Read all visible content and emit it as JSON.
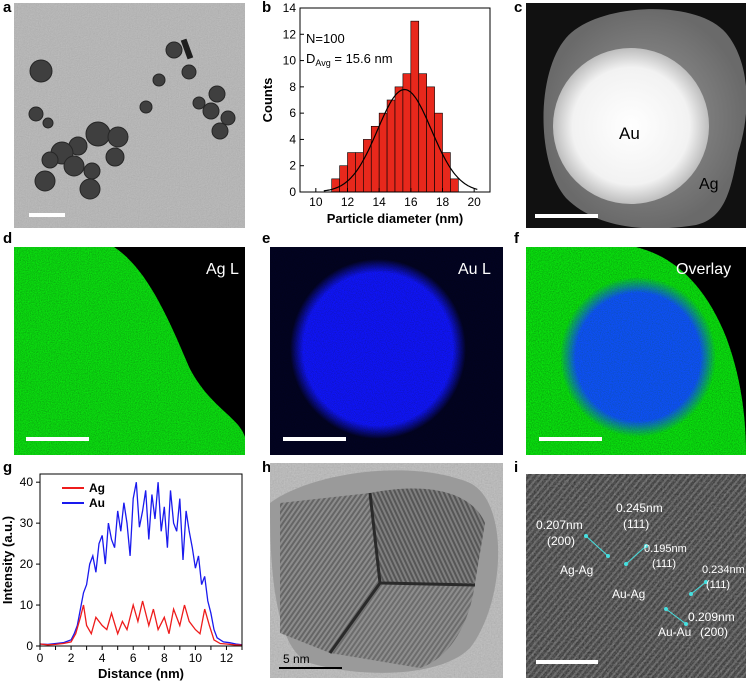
{
  "panel_labels": [
    "a",
    "b",
    "c",
    "d",
    "e",
    "f",
    "g",
    "h",
    "i"
  ],
  "panel_c": {
    "core_label": "Au",
    "shell_label": "Ag"
  },
  "panel_d": {
    "label": "Ag L"
  },
  "panel_e": {
    "label": "Au L"
  },
  "panel_f": {
    "label": "Overlay"
  },
  "panel_h": {
    "scalebar_label": "5 nm"
  },
  "panel_i": {
    "annotations": [
      {
        "text": "0.245nm"
      },
      {
        "text": "(111)"
      },
      {
        "text": "0.207nm"
      },
      {
        "text": "(200)"
      },
      {
        "text": "0.195nm"
      },
      {
        "text": "(111)"
      },
      {
        "text": "Ag-Ag"
      },
      {
        "text": "0.234nm"
      },
      {
        "text": "(111)"
      },
      {
        "text": "Au-Ag"
      },
      {
        "text": "0.209nm"
      },
      {
        "text": "Au-Au"
      },
      {
        "text": "(200)"
      }
    ]
  },
  "colors": {
    "histogram_bar": "#e8281c",
    "ag_line": "#ee1c1c",
    "au_line": "#1a1aee",
    "ag_map": "#1fbf2a",
    "au_map": "#2a38ff"
  },
  "chart_data": [
    {
      "type": "bar",
      "panel": "b",
      "title": "",
      "annotations": [
        "N=100",
        "D",
        "Avg",
        " = 15.6 nm"
      ],
      "xlabel": "Particle diameter (nm)",
      "ylabel": "Counts",
      "xlim": [
        9,
        21
      ],
      "ylim": [
        0,
        14
      ],
      "xticks": [
        10,
        12,
        14,
        16,
        18,
        20
      ],
      "yticks": [
        0,
        2,
        4,
        6,
        8,
        10,
        12,
        14
      ],
      "bin_left_edges": [
        11,
        11.5,
        12,
        12.5,
        13,
        13.5,
        14,
        14.5,
        15,
        15.5,
        16,
        16.5,
        17,
        17.5,
        18,
        18.5
      ],
      "bin_width": 0.5,
      "values": [
        1,
        2,
        3,
        3,
        4,
        5,
        6,
        7,
        8,
        9,
        13,
        9,
        8,
        6,
        3,
        1
      ],
      "fit": {
        "type": "gaussian",
        "mean": 15.6,
        "sigma": 1.7,
        "peak": 7.8
      }
    },
    {
      "type": "line",
      "panel": "g",
      "xlabel": "Distance (nm)",
      "ylabel": "Intensity (a.u.)",
      "xlim": [
        0,
        13
      ],
      "ylim": [
        0,
        42
      ],
      "xticks": [
        0,
        1,
        2,
        3,
        4,
        5,
        6,
        7,
        8,
        9,
        10,
        11,
        12,
        13
      ],
      "xtick_labels": [
        "0",
        "",
        "2",
        "",
        "4",
        "",
        "6",
        "",
        "8",
        "",
        "10",
        "",
        "12",
        ""
      ],
      "yticks": [
        0,
        10,
        20,
        30,
        40
      ],
      "legend_position": "top-left",
      "series": [
        {
          "name": "Ag",
          "color": "#ee1c1c",
          "x": [
            0,
            0.5,
            1,
            1.5,
            2,
            2.3,
            2.6,
            2.8,
            3,
            3.3,
            3.6,
            4,
            4.3,
            4.6,
            5,
            5.3,
            5.6,
            6,
            6.3,
            6.6,
            7,
            7.3,
            7.6,
            8,
            8.3,
            8.6,
            9,
            9.3,
            9.6,
            10,
            10.3,
            10.6,
            10.9,
            11.2,
            11.6,
            12,
            12.5,
            13
          ],
          "y": [
            0.5,
            0.3,
            0.4,
            0.6,
            1,
            3,
            7,
            10,
            5,
            3,
            7,
            5,
            4,
            8,
            3,
            6,
            4,
            10,
            6,
            11,
            5,
            9,
            4,
            7,
            3,
            9,
            5,
            10,
            6,
            4,
            3,
            9,
            5,
            1.5,
            0.6,
            0.5,
            0.3,
            0.2
          ]
        },
        {
          "name": "Au",
          "color": "#1a1aee",
          "x": [
            0,
            0.5,
            1,
            1.5,
            2,
            2.2,
            2.4,
            2.6,
            2.8,
            3,
            3.2,
            3.4,
            3.6,
            3.8,
            4,
            4.2,
            4.4,
            4.6,
            4.8,
            5,
            5.2,
            5.4,
            5.6,
            5.8,
            6,
            6.2,
            6.4,
            6.6,
            6.8,
            7,
            7.2,
            7.4,
            7.6,
            7.8,
            8,
            8.2,
            8.4,
            8.6,
            8.8,
            9,
            9.2,
            9.4,
            9.6,
            9.8,
            10,
            10.2,
            10.4,
            10.6,
            10.8,
            11,
            11.2,
            11.4,
            11.8,
            12.2,
            12.6,
            13
          ],
          "y": [
            0.5,
            0.4,
            0.6,
            0.8,
            1.5,
            3,
            5,
            9,
            13,
            15,
            20,
            22,
            18,
            25,
            27,
            20,
            30,
            26,
            24,
            33,
            28,
            35,
            30,
            22,
            36,
            40,
            29,
            33,
            38,
            26,
            37,
            31,
            40,
            28,
            34,
            24,
            38,
            30,
            28,
            36,
            21,
            33,
            28,
            24,
            19,
            22,
            15,
            17,
            11,
            8,
            4,
            2,
            1,
            0.8,
            0.5,
            0.3
          ]
        }
      ]
    }
  ]
}
